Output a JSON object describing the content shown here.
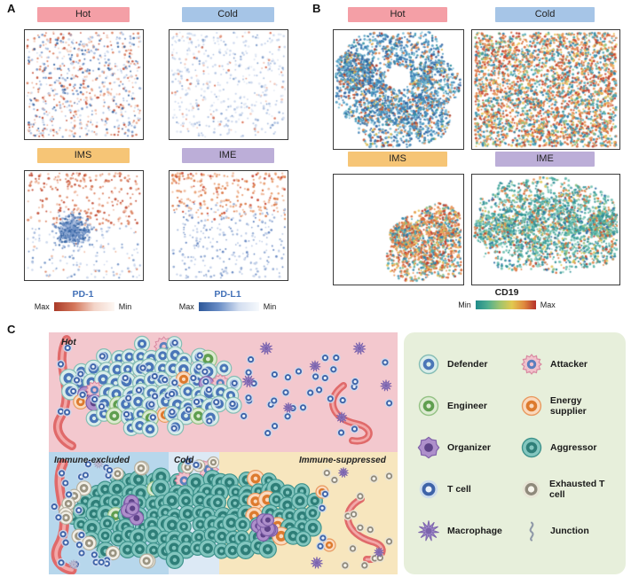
{
  "figure": {
    "panel_a_label": "A",
    "panel_b_label": "B",
    "panel_c_label": "C"
  },
  "chart_data": {
    "panel_a_plots": [
      {
        "type": "scatter",
        "label": "Hot",
        "header_color": "#F49FA6",
        "layers": [
          {
            "shape": "uniform",
            "n": 360,
            "r": 1.15,
            "colors": [
              [
                "#C14A32",
                1
              ],
              [
                "#D97B5A",
                1.2
              ],
              [
                "#EBAE94",
                1.3
              ],
              [
                "#F3CDBD",
                0.9
              ]
            ]
          },
          {
            "shape": "uniform",
            "n": 360,
            "r": 1.15,
            "colors": [
              [
                "#33619F",
                0.8
              ],
              [
                "#6C8FC4",
                1.2
              ],
              [
                "#A3B8DC",
                1.4
              ],
              [
                "#CBD8EC",
                1.1
              ]
            ]
          }
        ]
      },
      {
        "type": "scatter",
        "label": "Cold",
        "header_color": "#A6C5E7",
        "layers": [
          {
            "shape": "uniform",
            "n": 430,
            "r": 1.15,
            "colors": [
              [
                "#A9BEDF",
                1
              ],
              [
                "#C8D5EB",
                1.6
              ],
              [
                "#E0E7F4",
                1.2
              ],
              [
                "#7F9CCB",
                0.4
              ]
            ]
          },
          {
            "shape": "uniform",
            "n": 65,
            "r": 1.15,
            "colors": [
              [
                "#E2917A",
                1
              ],
              [
                "#D96A4E",
                0.6
              ],
              [
                "#F0C0B0",
                1
              ]
            ]
          }
        ]
      },
      {
        "type": "scatter",
        "label": "IMS",
        "header_color": "#F6C576",
        "layers": [
          {
            "shape": "band",
            "y0": 0.02,
            "y1": 0.5,
            "pow": 1.15,
            "n": 225,
            "r": 1.25,
            "colors": [
              [
                "#C14A32",
                1
              ],
              [
                "#DB8160",
                1.2
              ],
              [
                "#EFB8A0",
                0.9
              ]
            ]
          },
          {
            "shape": "uniform",
            "n": 40,
            "r": 1.15,
            "colors": [
              [
                "#D97B5A",
                1
              ],
              [
                "#EFB8A0",
                0.8
              ]
            ]
          },
          {
            "shape": "gauss",
            "cx": 0.4,
            "cy": 0.55,
            "sd": 0.11,
            "n": 500,
            "r": 1.15,
            "colors": [
              [
                "#3A67A5",
                1
              ],
              [
                "#6C8FC4",
                1.3
              ],
              [
                "#9FB5DA",
                1
              ]
            ]
          },
          {
            "shape": "band",
            "y0": 0.5,
            "y1": 0.98,
            "pow": 1,
            "n": 130,
            "r": 1.1,
            "colors": [
              [
                "#9FB5DA",
                1
              ],
              [
                "#C8D5EB",
                1.4
              ],
              [
                "#6C8FC4",
                0.5
              ]
            ]
          }
        ]
      },
      {
        "type": "scatter",
        "label": "IME",
        "header_color": "#BCAED8",
        "layers": [
          {
            "shape": "band",
            "y0": 0.02,
            "y1": 0.45,
            "pow": 1.5,
            "n": 240,
            "r": 1.25,
            "colors": [
              [
                "#D9713E",
                1
              ],
              [
                "#E89A6A",
                1.1
              ],
              [
                "#C8432F",
                0.6
              ],
              [
                "#EFB89A",
                0.8
              ]
            ]
          },
          {
            "shape": "band",
            "y0": 0.28,
            "y1": 0.98,
            "pow": 0.85,
            "n": 270,
            "r": 1.1,
            "colors": [
              [
                "#8FA8D2",
                1
              ],
              [
                "#BCCBE6",
                1.3
              ],
              [
                "#5B7FBE",
                0.6
              ]
            ]
          }
        ]
      }
    ],
    "panel_a_colorbars": [
      {
        "label": "PD-1",
        "label_color": "#4472B8",
        "left": "Max",
        "right": "Min",
        "stops": [
          "#A93A28",
          "#D4775B",
          "#F3D5C9",
          "#FDF7F3"
        ]
      },
      {
        "label": "PD-L1",
        "label_color": "#4472B8",
        "left": "Max",
        "right": "Min",
        "stops": [
          "#2D5799",
          "#6A8EC6",
          "#D3DEF0",
          "#F6F9FC"
        ]
      }
    ],
    "panel_b_plots": [
      {
        "type": "scatter",
        "label": "Hot",
        "header_color": "#F49FA6",
        "layers": [
          {
            "shape": "clusters",
            "n": 2600,
            "r": 1.25,
            "cs": [
              [
                0.32,
                0.28,
                0.26
              ],
              [
                0.62,
                0.22,
                0.24
              ],
              [
                0.25,
                0.55,
                0.24
              ],
              [
                0.55,
                0.55,
                0.26
              ],
              [
                0.42,
                0.8,
                0.24
              ],
              [
                0.78,
                0.45,
                0.2
              ],
              [
                0.7,
                0.75,
                0.2
              ],
              [
                0.15,
                0.35,
                0.16
              ]
            ],
            "holes": [
              [
                0.5,
                0.4,
                0.1
              ],
              [
                0.1,
                0.9,
                0.1
              ],
              [
                0.92,
                0.08,
                0.09
              ]
            ],
            "colors": [
              [
                "#2B5FA0",
                1
              ],
              [
                "#3E7FB5",
                1.3
              ],
              [
                "#4E9CC2",
                1.1
              ],
              [
                "#79BCD4",
                0.8
              ],
              [
                "#2E8F9E",
                0.5
              ],
              [
                "#E0894E",
                0.5
              ],
              [
                "#C8542F",
                0.35
              ],
              [
                "#D9B84F",
                0.3
              ],
              [
                "#A83A2E",
                0.2
              ]
            ]
          }
        ]
      },
      {
        "type": "scatter",
        "label": "Cold",
        "header_color": "#A6C5E7",
        "layers": [
          {
            "shape": "uniform",
            "n": 3100,
            "r": 1.25,
            "colors": [
              [
                "#C4402E",
                0.9
              ],
              [
                "#D96B3A",
                1.1
              ],
              [
                "#E8975A",
                1.0
              ],
              [
                "#E8C45A",
                0.7
              ],
              [
                "#8FBF7A",
                0.4
              ],
              [
                "#4FA8B5",
                0.9
              ],
              [
                "#2E7FA8",
                0.7
              ],
              [
                "#3E96A0",
                0.6
              ]
            ]
          }
        ]
      },
      {
        "type": "scatter",
        "label": "IMS",
        "header_color": "#F6C576",
        "layers": [
          {
            "shape": "clusters",
            "n": 1450,
            "r": 1.25,
            "cs": [
              [
                0.72,
                0.6,
                0.28
              ],
              [
                0.88,
                0.72,
                0.22
              ],
              [
                0.6,
                0.78,
                0.2
              ],
              [
                0.82,
                0.42,
                0.16
              ],
              [
                0.55,
                0.55,
                0.12
              ]
            ],
            "colors": [
              [
                "#D96B3A",
                1
              ],
              [
                "#E8975A",
                1
              ],
              [
                "#C4402E",
                0.55
              ],
              [
                "#E8C45A",
                0.6
              ],
              [
                "#4FA8B5",
                0.9
              ],
              [
                "#2E7FA8",
                0.5
              ],
              [
                "#8FBF7A",
                0.35
              ]
            ]
          }
        ]
      },
      {
        "type": "scatter",
        "label": "IME",
        "header_color": "#BCAED8",
        "layers": [
          {
            "shape": "clusters",
            "n": 2600,
            "r": 1.25,
            "cs": [
              [
                0.28,
                0.3,
                0.24
              ],
              [
                0.52,
                0.26,
                0.26
              ],
              [
                0.75,
                0.32,
                0.22
              ],
              [
                0.3,
                0.62,
                0.26
              ],
              [
                0.58,
                0.62,
                0.28
              ],
              [
                0.8,
                0.65,
                0.2
              ],
              [
                0.45,
                0.45,
                0.26
              ],
              [
                0.15,
                0.5,
                0.15
              ],
              [
                0.9,
                0.45,
                0.12
              ]
            ],
            "holes": [
              [
                0.06,
                0.12,
                0.1
              ],
              [
                0.97,
                0.1,
                0.1
              ],
              [
                0.5,
                0.97,
                0.08
              ]
            ],
            "colors": [
              [
                "#2E8F96",
                1.2
              ],
              [
                "#44A89C",
                1.2
              ],
              [
                "#6BBFB0",
                0.9
              ],
              [
                "#8FCFC0",
                0.5
              ],
              [
                "#2E6FA8",
                0.45
              ],
              [
                "#E0894E",
                0.5
              ],
              [
                "#D9622F",
                0.3
              ],
              [
                "#E0C455",
                0.35
              ],
              [
                "#B53A2E",
                0.18
              ],
              [
                "#8FBF7A",
                0.3
              ]
            ]
          }
        ]
      }
    ],
    "panel_b_colorbar": {
      "label": "CD19",
      "label_color": "#222222",
      "left": "Min",
      "right": "Max",
      "stops": [
        "#1F8A8A",
        "#4FAE8F",
        "#9FC46F",
        "#E2C94F",
        "#E08A3E",
        "#B5302A"
      ]
    }
  },
  "panel_c": {
    "regions": [
      {
        "label": "Hot",
        "bg": "#F3C8CE"
      },
      {
        "label": "Immune-excluded",
        "bg": "#B7D7EC"
      },
      {
        "label": "Cold",
        "bg": "#DCE9F5"
      },
      {
        "label": "Immune-suppressed",
        "bg": "#F7E6BE"
      }
    ],
    "palette": {
      "defender": [
        "#D9EDEA",
        "#85BDB5",
        "#4A76B8"
      ],
      "aggressor": [
        "#83C6BF",
        "#3E938C",
        "#2E7E78"
      ],
      "engineer": [
        "#DDEBD2",
        "#94C284",
        "#5F9E4F"
      ],
      "energy": [
        "#FAD9BE",
        "#E8995F",
        "#DD7A2E"
      ],
      "pale": [
        "#F2EFE6",
        "#B5AF9E",
        "#9A9482"
      ],
      "organizer": [
        "#AE8FCB",
        "#7E5FA8",
        "#5E4388"
      ],
      "attacker": [
        "#F2C2CC",
        "#D888A0",
        "#5B7FBE"
      ],
      "t_cell": [
        "#C9D9EE",
        "#EAF0F8",
        "#3E63A8"
      ],
      "exhausted": [
        "#E8E3D5",
        "#F7F4EC",
        "#8F897B"
      ],
      "macrophage": [
        "#9B85C6",
        "#7B63AC"
      ],
      "macrophage_pale": [
        "#E8E8F2",
        "#A8A8C4"
      ],
      "vessel": [
        "#E06A6A",
        "#F2A8A8"
      ],
      "junction": "#8F99A8"
    }
  },
  "legend": {
    "bg": "#E7EFDB",
    "items": [
      {
        "label": "Defender",
        "icon": "defender"
      },
      {
        "label": "Attacker",
        "icon": "attacker"
      },
      {
        "label": "Engineer",
        "icon": "engineer"
      },
      {
        "label": "Energy supplier",
        "icon": "energy-supplier"
      },
      {
        "label": "Organizer",
        "icon": "organizer"
      },
      {
        "label": "Aggressor",
        "icon": "aggressor"
      },
      {
        "label": "T cell",
        "icon": "t-cell"
      },
      {
        "label": "Exhausted T cell",
        "icon": "exhausted-t-cell"
      },
      {
        "label": "Macrophage",
        "icon": "macrophage"
      },
      {
        "label": "Junction",
        "icon": "junction"
      }
    ]
  }
}
